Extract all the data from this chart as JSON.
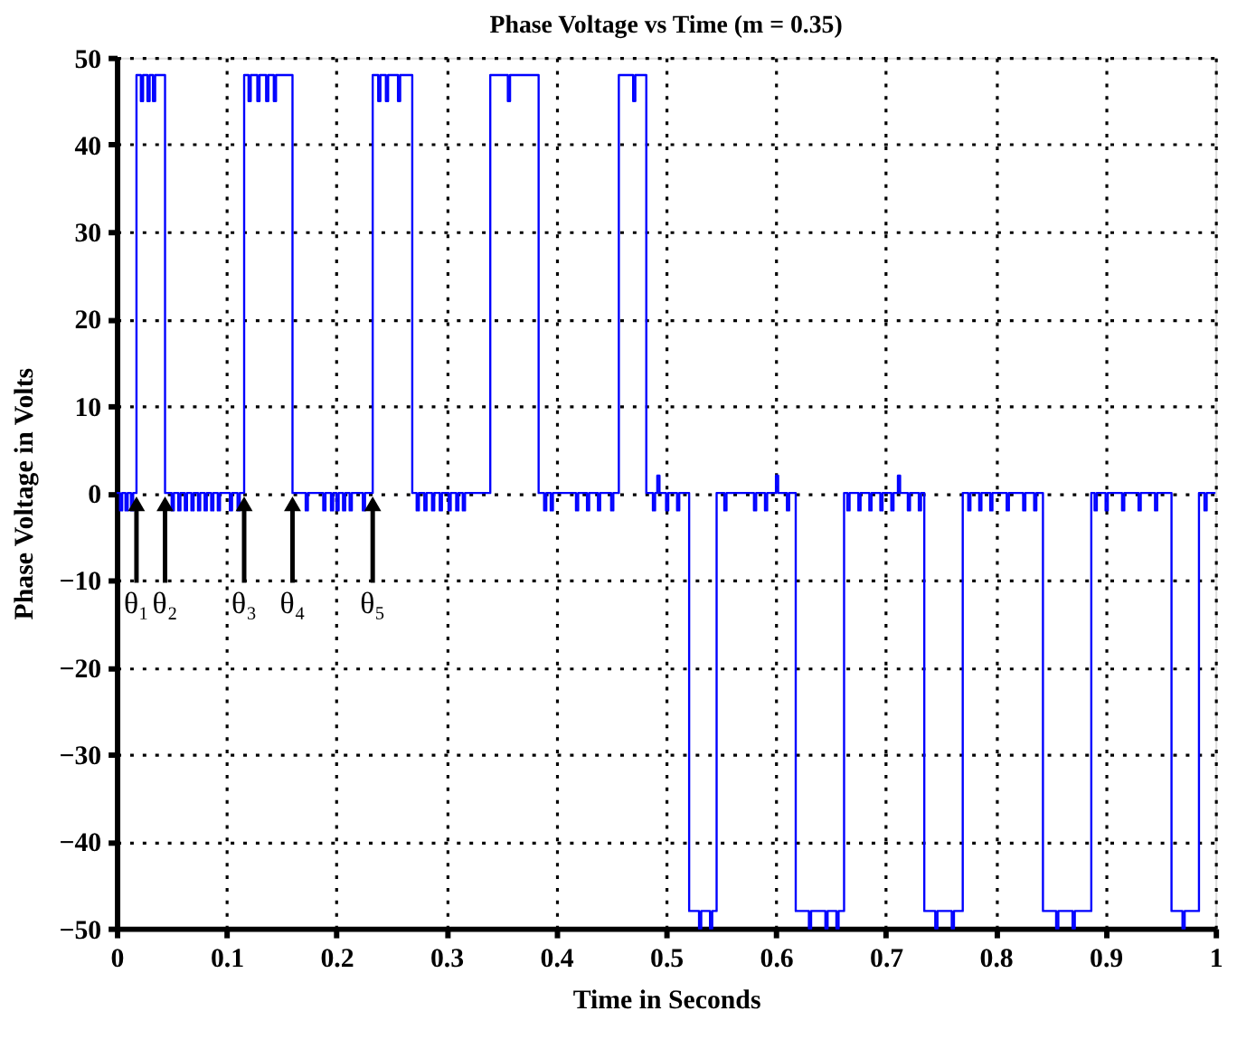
{
  "chart_data": {
    "type": "step",
    "title": "Phase Voltage vs Time (m = 0.35)",
    "xlabel": "Time in Seconds",
    "ylabel": "Phase Voltage in Volts",
    "x": [
      0,
      0.003,
      0.005,
      0.008,
      0.01,
      0.013,
      0.015,
      0.018,
      0.022,
      0.024,
      0.028,
      0.03,
      0.033,
      0.035,
      0.044,
      0.05,
      0.052,
      0.056,
      0.058,
      0.062,
      0.064,
      0.068,
      0.07,
      0.074,
      0.076,
      0.08,
      0.082,
      0.086,
      0.088,
      0.092,
      0.094,
      0.103,
      0.105,
      0.11,
      0.112,
      0.116,
      0.12,
      0.122,
      0.128,
      0.13,
      0.136,
      0.138,
      0.143,
      0.145,
      0.16,
      0.172,
      0.174,
      0.188,
      0.19,
      0.195,
      0.197,
      0.2,
      0.202,
      0.206,
      0.208,
      0.212,
      0.214,
      0.224,
      0.226,
      0.233,
      0.238,
      0.24,
      0.245,
      0.247,
      0.256,
      0.258,
      0.269,
      0.273,
      0.275,
      0.28,
      0.282,
      0.287,
      0.289,
      0.294,
      0.296,
      0.302,
      0.304,
      0.309,
      0.311,
      0.315,
      0.317,
      0.34,
      0.356,
      0.358,
      0.384,
      0.389,
      0.391,
      0.395,
      0.397,
      0.418,
      0.42,
      0.428,
      0.43,
      0.438,
      0.44,
      0.45,
      0.452,
      0.457,
      0.47,
      0.472,
      0.482,
      0.488,
      0.49,
      0.492,
      0.494,
      0.5,
      0.502,
      0.51,
      0.512,
      0.521,
      0.53,
      0.532,
      0.54,
      0.542,
      0.546,
      0.553,
      0.555,
      0.58,
      0.582,
      0.59,
      0.592,
      0.6,
      0.602,
      0.61,
      0.612,
      0.618,
      0.63,
      0.632,
      0.645,
      0.647,
      0.655,
      0.657,
      0.662,
      0.665,
      0.667,
      0.675,
      0.677,
      0.685,
      0.687,
      0.695,
      0.697,
      0.705,
      0.707,
      0.711,
      0.713,
      0.72,
      0.722,
      0.73,
      0.732,
      0.735,
      0.745,
      0.747,
      0.76,
      0.762,
      0.77,
      0.775,
      0.777,
      0.785,
      0.787,
      0.795,
      0.797,
      0.81,
      0.812,
      0.825,
      0.827,
      0.835,
      0.837,
      0.843,
      0.855,
      0.857,
      0.87,
      0.872,
      0.887,
      0.89,
      0.892,
      0.9,
      0.902,
      0.915,
      0.917,
      0.93,
      0.932,
      0.945,
      0.947,
      0.96,
      0.97,
      0.972,
      0.985,
      0.99,
      0.992,
      1.0
    ],
    "series": [
      {
        "color": "#0000ff",
        "values": [
          0,
          -2,
          0,
          -2,
          0,
          -2,
          0,
          48,
          45,
          48,
          45,
          48,
          45,
          48,
          0,
          -2,
          0,
          -2,
          0,
          -2,
          0,
          -2,
          0,
          -2,
          0,
          -2,
          0,
          -2,
          0,
          -2,
          0,
          -2,
          0,
          -2,
          0,
          48,
          45,
          48,
          45,
          48,
          45,
          48,
          45,
          48,
          0,
          -2,
          0,
          -2,
          0,
          -2,
          0,
          -2,
          0,
          -2,
          0,
          -2,
          0,
          -2,
          0,
          48,
          45,
          48,
          45,
          48,
          45,
          48,
          0,
          -2,
          0,
          -2,
          0,
          -2,
          0,
          -2,
          0,
          -2,
          0,
          -2,
          0,
          -2,
          0,
          48,
          45,
          48,
          0,
          -2,
          0,
          -2,
          0,
          -2,
          0,
          -2,
          0,
          -2,
          0,
          -2,
          0,
          48,
          45,
          48,
          0,
          -2,
          0,
          2,
          0,
          -2,
          0,
          -2,
          0,
          -48,
          -50,
          -48,
          -50,
          -48,
          0,
          -2,
          0,
          -2,
          0,
          -2,
          0,
          2,
          0,
          -2,
          0,
          -48,
          -50,
          -48,
          -50,
          -48,
          -50,
          -48,
          0,
          -2,
          0,
          -2,
          0,
          -2,
          0,
          -2,
          0,
          -2,
          0,
          2,
          0,
          -2,
          0,
          -2,
          0,
          -48,
          -50,
          -48,
          -50,
          -48,
          0,
          -2,
          0,
          -2,
          0,
          -2,
          0,
          -2,
          0,
          -2,
          0,
          -2,
          0,
          -48,
          -50,
          -48,
          -50,
          -48,
          0,
          -2,
          0,
          -2,
          0,
          -2,
          0,
          -2,
          0,
          -2,
          0,
          -48,
          -50,
          -48,
          0,
          -2,
          0,
          0
        ]
      }
    ],
    "xlim": [
      0,
      1
    ],
    "xticks": [
      0,
      0.1,
      0.2,
      0.3,
      0.4,
      0.5,
      0.6,
      0.7,
      0.8,
      0.9,
      1
    ],
    "ylim": [
      -50,
      50
    ],
    "yticks": [
      -50,
      -40,
      -30,
      -20,
      -10,
      0,
      10,
      20,
      30,
      40,
      50
    ],
    "grid": true,
    "line_style": "solid",
    "marker": "none",
    "annotations": [
      {
        "text": "θ₁",
        "x": 0.018,
        "y": 0
      },
      {
        "text": "θ₂",
        "x": 0.044,
        "y": 0
      },
      {
        "text": "θ₃",
        "x": 0.116,
        "y": 0
      },
      {
        "text": "θ₄",
        "x": 0.16,
        "y": 0
      },
      {
        "text": "θ₅",
        "x": 0.233,
        "y": 0
      }
    ]
  }
}
